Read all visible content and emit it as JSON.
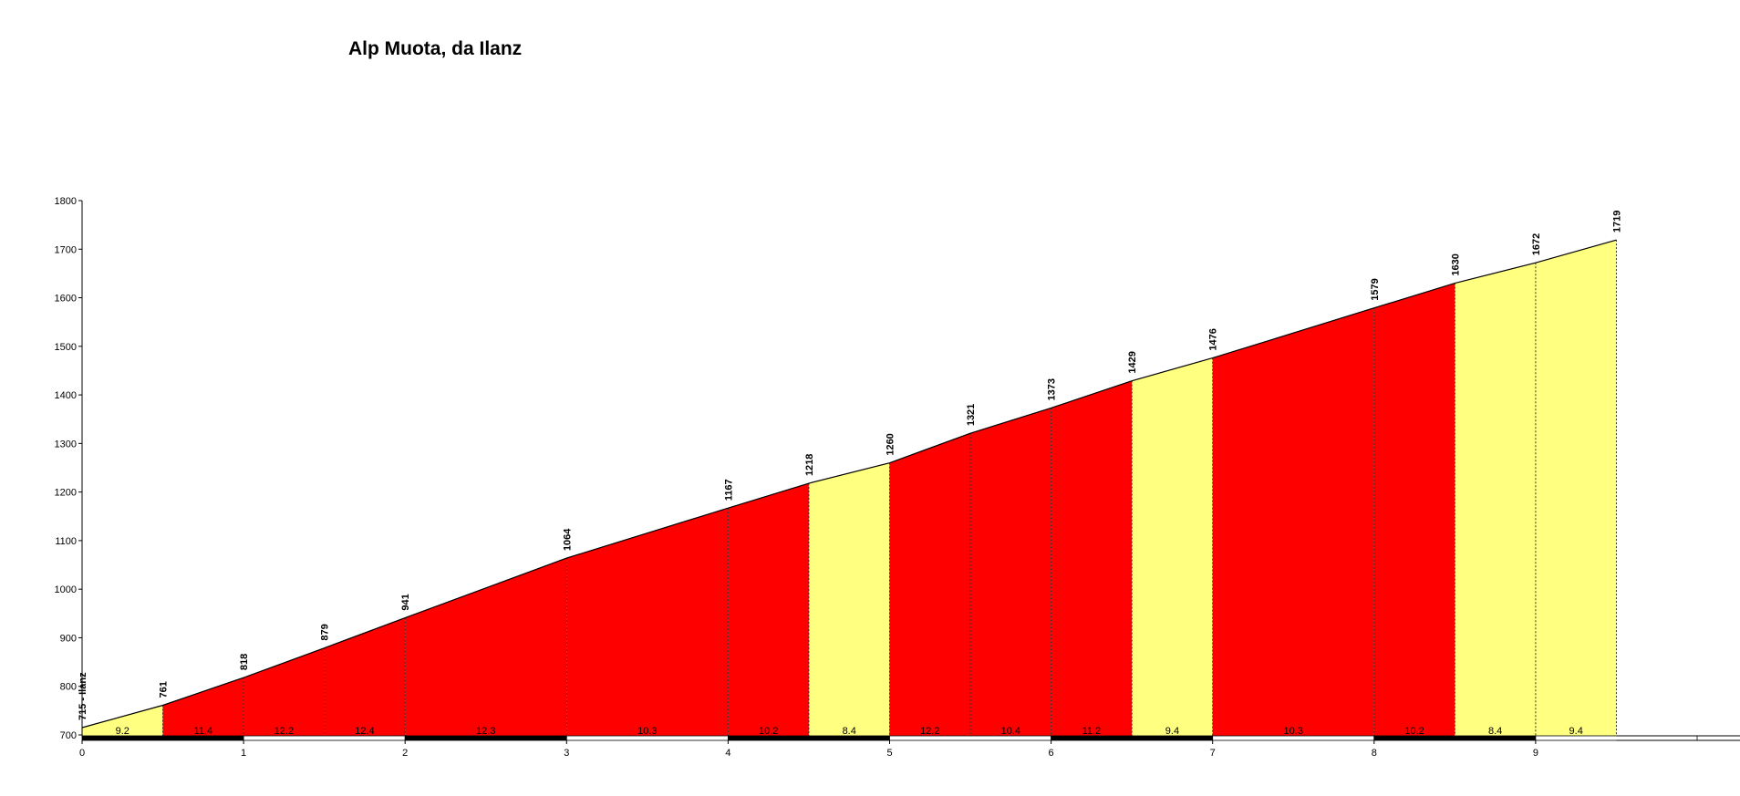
{
  "chart_data": {
    "type": "area",
    "title": "Alp Muota, da Ilanz",
    "xlabel": "",
    "ylabel": "",
    "xlim": [
      0,
      10
    ],
    "ylim": [
      700,
      1800
    ],
    "x_ticks": [
      0,
      1,
      2,
      3,
      4,
      5,
      6,
      7,
      8,
      9
    ],
    "y_ticks": [
      700,
      800,
      900,
      1000,
      1100,
      1200,
      1300,
      1400,
      1500,
      1600,
      1700,
      1800
    ],
    "points": [
      {
        "x": 0.0,
        "elevation": 715,
        "label": "715 - Ilanz"
      },
      {
        "x": 0.5,
        "elevation": 761,
        "label": "761"
      },
      {
        "x": 1.0,
        "elevation": 818,
        "label": "818"
      },
      {
        "x": 1.5,
        "elevation": 879,
        "label": "879"
      },
      {
        "x": 2.0,
        "elevation": 941,
        "label": "941"
      },
      {
        "x": 3.0,
        "elevation": 1064,
        "label": "1064"
      },
      {
        "x": 4.0,
        "elevation": 1167,
        "label": "1167"
      },
      {
        "x": 4.5,
        "elevation": 1218,
        "label": "1218"
      },
      {
        "x": 5.0,
        "elevation": 1260,
        "label": "1260"
      },
      {
        "x": 5.5,
        "elevation": 1321,
        "label": "1321"
      },
      {
        "x": 6.0,
        "elevation": 1373,
        "label": "1373"
      },
      {
        "x": 6.5,
        "elevation": 1429,
        "label": "1429"
      },
      {
        "x": 7.0,
        "elevation": 1476,
        "label": "1476"
      },
      {
        "x": 8.0,
        "elevation": 1579,
        "label": "1579"
      },
      {
        "x": 8.5,
        "elevation": 1630,
        "label": "1630"
      },
      {
        "x": 9.0,
        "elevation": 1672,
        "label": "1672"
      },
      {
        "x": 9.5,
        "elevation": 1719,
        "label": "1719"
      }
    ],
    "segments": [
      {
        "from": 0.0,
        "to": 0.5,
        "gradient": "9.2",
        "color": "#ffff80"
      },
      {
        "from": 0.5,
        "to": 1.0,
        "gradient": "11.4",
        "color": "#ff0000"
      },
      {
        "from": 1.0,
        "to": 1.5,
        "gradient": "12.2",
        "color": "#ff0000"
      },
      {
        "from": 1.5,
        "to": 2.0,
        "gradient": "12.4",
        "color": "#ff0000"
      },
      {
        "from": 2.0,
        "to": 3.0,
        "gradient": "12.3",
        "color": "#ff0000"
      },
      {
        "from": 3.0,
        "to": 4.0,
        "gradient": "10.3",
        "color": "#ff0000"
      },
      {
        "from": 4.0,
        "to": 4.5,
        "gradient": "10.2",
        "color": "#ff0000"
      },
      {
        "from": 4.5,
        "to": 5.0,
        "gradient": "8.4",
        "color": "#ffff80"
      },
      {
        "from": 5.0,
        "to": 5.5,
        "gradient": "12.2",
        "color": "#ff0000"
      },
      {
        "from": 5.5,
        "to": 6.0,
        "gradient": "10.4",
        "color": "#ff0000"
      },
      {
        "from": 6.0,
        "to": 6.5,
        "gradient": "11.2",
        "color": "#ff0000"
      },
      {
        "from": 6.5,
        "to": 7.0,
        "gradient": "9.4",
        "color": "#ffff80"
      },
      {
        "from": 7.0,
        "to": 8.0,
        "gradient": "10.3",
        "color": "#ff0000"
      },
      {
        "from": 8.0,
        "to": 8.5,
        "gradient": "10.2",
        "color": "#ff0000"
      },
      {
        "from": 8.5,
        "to": 9.0,
        "gradient": "8.4",
        "color": "#ffff80"
      },
      {
        "from": 9.0,
        "to": 9.5,
        "gradient": "9.4",
        "color": "#ffff80"
      }
    ],
    "grid": false,
    "legend": "none"
  }
}
